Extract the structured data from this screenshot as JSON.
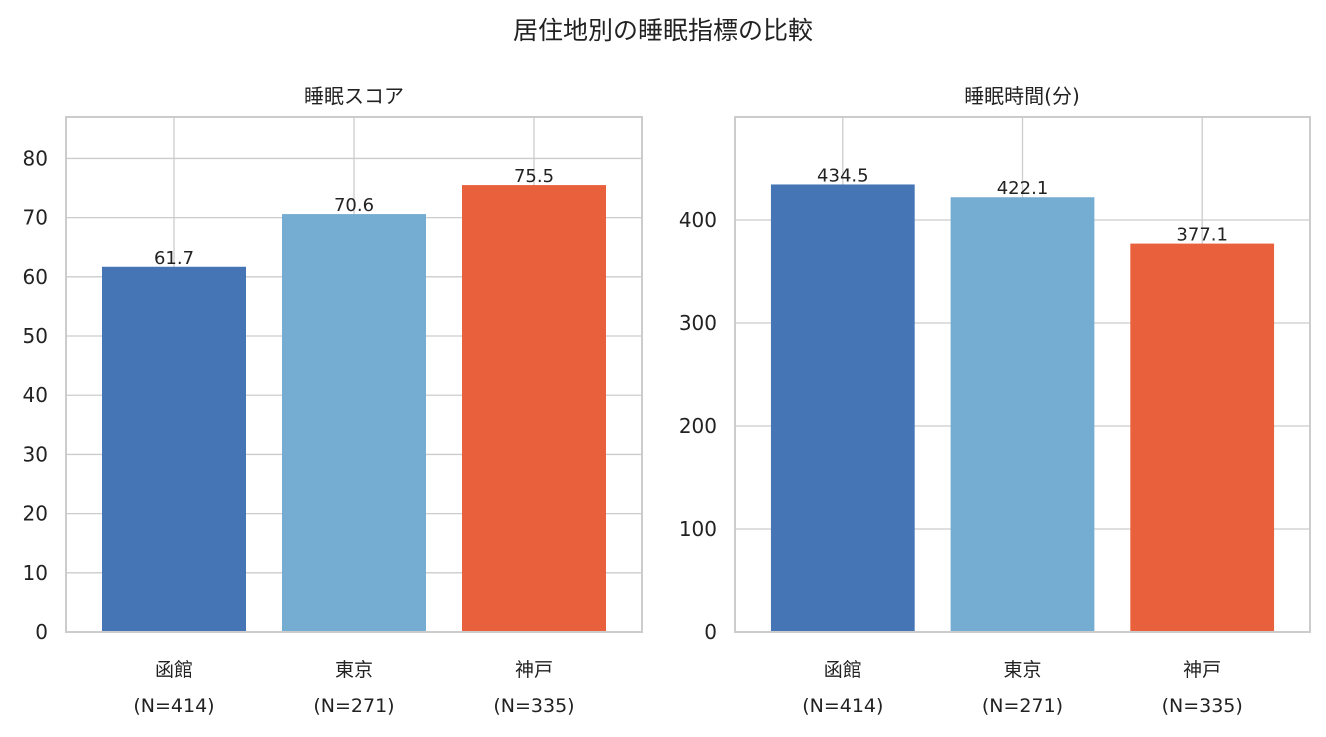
{
  "figure": {
    "title": "居住地別の睡眠指標の比較"
  },
  "chart_data": [
    {
      "type": "bar",
      "title": "睡眠スコア",
      "xlabel": "",
      "ylabel": "",
      "categories": [
        "函館\n(N=414)",
        "東京\n(N=271)",
        "神戸\n(N=335)"
      ],
      "values": [
        61.7,
        70.6,
        75.5
      ],
      "value_labels": [
        "61.7",
        "70.6",
        "75.5"
      ],
      "colors": [
        "#4575b4",
        "#74add1",
        "#e8603c"
      ],
      "ylim": [
        0,
        87
      ],
      "yticks": [
        0,
        10,
        20,
        30,
        40,
        50,
        60,
        70,
        80
      ],
      "grid": true,
      "legend": "none"
    },
    {
      "type": "bar",
      "title": "睡眠時間(分)",
      "xlabel": "",
      "ylabel": "",
      "categories": [
        "函館\n(N=414)",
        "東京\n(N=271)",
        "神戸\n(N=335)"
      ],
      "values": [
        434.5,
        422.1,
        377.1
      ],
      "value_labels": [
        "434.5",
        "422.1",
        "377.1"
      ],
      "colors": [
        "#4575b4",
        "#74add1",
        "#e8603c"
      ],
      "ylim": [
        0,
        500
      ],
      "yticks": [
        0,
        100,
        200,
        300,
        400
      ],
      "grid": true,
      "legend": "none"
    }
  ]
}
